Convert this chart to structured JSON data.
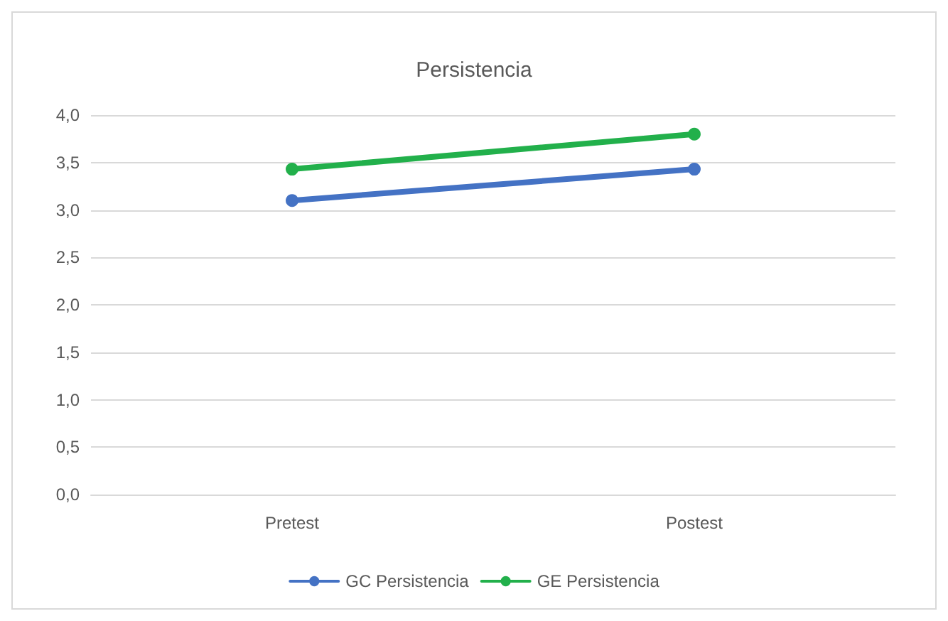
{
  "chart_data": {
    "type": "line",
    "title": "Persistencia",
    "categories": [
      "Pretest",
      "Postest"
    ],
    "series": [
      {
        "name": "GC Persistencia",
        "color": "#4472c4",
        "values": [
          3.1,
          3.43
        ]
      },
      {
        "name": "GE Persistencia",
        "color": "#22b04b",
        "values": [
          3.43,
          3.8
        ]
      }
    ],
    "ylim": [
      0,
      4
    ],
    "yticks": [
      {
        "value": 0,
        "label": "0,0"
      },
      {
        "value": 0.5,
        "label": "0,5"
      },
      {
        "value": 1,
        "label": "1,0"
      },
      {
        "value": 1.5,
        "label": "1,5"
      },
      {
        "value": 2,
        "label": "2,0"
      },
      {
        "value": 2.5,
        "label": "2,5"
      },
      {
        "value": 3,
        "label": "3,0"
      },
      {
        "value": 3.5,
        "label": "3,5"
      },
      {
        "value": 4,
        "label": "4,0"
      }
    ],
    "grid": true,
    "legend": "bottom",
    "marker": "circle",
    "line_style": "solid"
  }
}
